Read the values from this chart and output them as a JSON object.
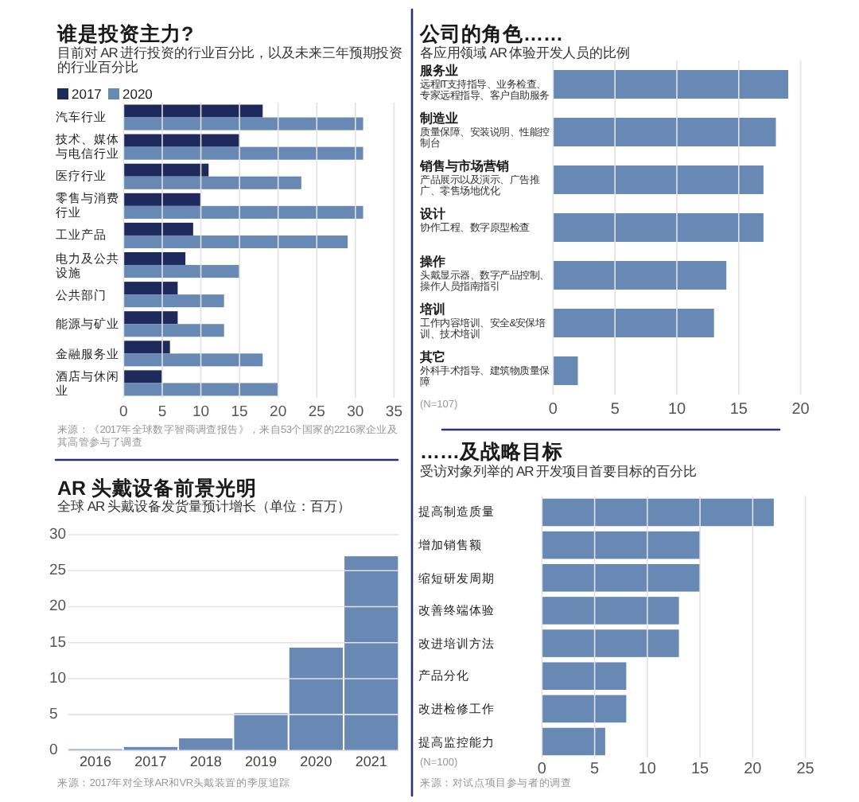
{
  "chart_data": [
    {
      "type": "bar",
      "orientation": "horizontal",
      "title": "谁是投资主力?",
      "subtitle": "目前对 AR 进行投资的行业百分比，以及未来三年预期投资的行业百分比",
      "categories": [
        "汽车行业",
        "技术、媒体与电信行业",
        "医疗行业",
        "零售与消费行业",
        "工业产品",
        "电力及公共设施",
        "公共部门",
        "能源与矿业",
        "金融服务业",
        "酒店与休闲业"
      ],
      "series": [
        {
          "name": "2017",
          "color": "#1e2a5c",
          "values": [
            18,
            15,
            11,
            10,
            9,
            8,
            7,
            7,
            6,
            5
          ]
        },
        {
          "name": "2020",
          "color": "#6889b4",
          "values": [
            31,
            31,
            23,
            31,
            29,
            15,
            13,
            13,
            18,
            20
          ]
        }
      ],
      "xlim": [
        0,
        35
      ],
      "xticks": [
        0,
        5,
        10,
        15,
        20,
        25,
        30,
        35
      ],
      "grid": "x",
      "legend": "top left",
      "annotations": [
        "来源：《2017年全球数字智商调查报告》，来自53个国家的2216家企业及其高管参与了调查"
      ]
    },
    {
      "type": "bar",
      "orientation": "horizontal",
      "title": "公司的角色……",
      "subtitle": "各应用领域 AR 体验开发人员的比例",
      "categories": [
        "服务业",
        "制造业",
        "销售与市场营销",
        "设计",
        "操作",
        "培训",
        "其它"
      ],
      "values": [
        19,
        18,
        17,
        17,
        14,
        13,
        2
      ],
      "color": "#6889b4",
      "xlim": [
        0,
        20
      ],
      "xticks": [
        0,
        5,
        10,
        15,
        20
      ],
      "grid": "x",
      "annotations": [
        "远程IT支持指导、业务检查、专家远程指导、客户自助服务",
        "质量保障、安装说明、性能控制台",
        "产品展示以及演示、广告推广、零售场地优化",
        "协作工程、数字原型检查",
        "头戴显示器、数字产品控制、操作人员指南指引",
        "工作内容培训、安全&安保培训、技术培训",
        "外科手术指导、建筑物质量保障",
        "(N=107)"
      ]
    },
    {
      "type": "bar",
      "title": "AR 头戴设备前景光明",
      "subtitle": "全球 AR 头戴设备发货量预计增长（单位：百万）",
      "categories": [
        "2016",
        "2017",
        "2018",
        "2019",
        "2020",
        "2021"
      ],
      "values": [
        0.2,
        0.5,
        1.7,
        5.2,
        14.3,
        27
      ],
      "color": "#6889b4",
      "ylim": [
        0,
        30
      ],
      "yticks": [
        0,
        5,
        10,
        15,
        20,
        25,
        30
      ],
      "grid": "y",
      "annotations": [
        "来源：2017年对全球AR和VR头戴装置的季度追踪"
      ]
    },
    {
      "type": "bar",
      "orientation": "horizontal",
      "title": "……及战略目标",
      "subtitle": "受访对象列举的 AR 开发项目首要目标的百分比",
      "categories": [
        "提高制造质量",
        "增加销售额",
        "缩短研发周期",
        "改善终端体验",
        "改进培训方法",
        "产品分化",
        "改进检修工作",
        "提高监控能力"
      ],
      "values": [
        22,
        15,
        15,
        13,
        13,
        8,
        8,
        6
      ],
      "color": "#6889b4",
      "xlim": [
        0,
        25
      ],
      "xticks": [
        0,
        5,
        10,
        15,
        20,
        25
      ],
      "grid": "x",
      "annotations": [
        "(N=100)",
        "来源：对试点项目参与者的调查"
      ]
    }
  ]
}
